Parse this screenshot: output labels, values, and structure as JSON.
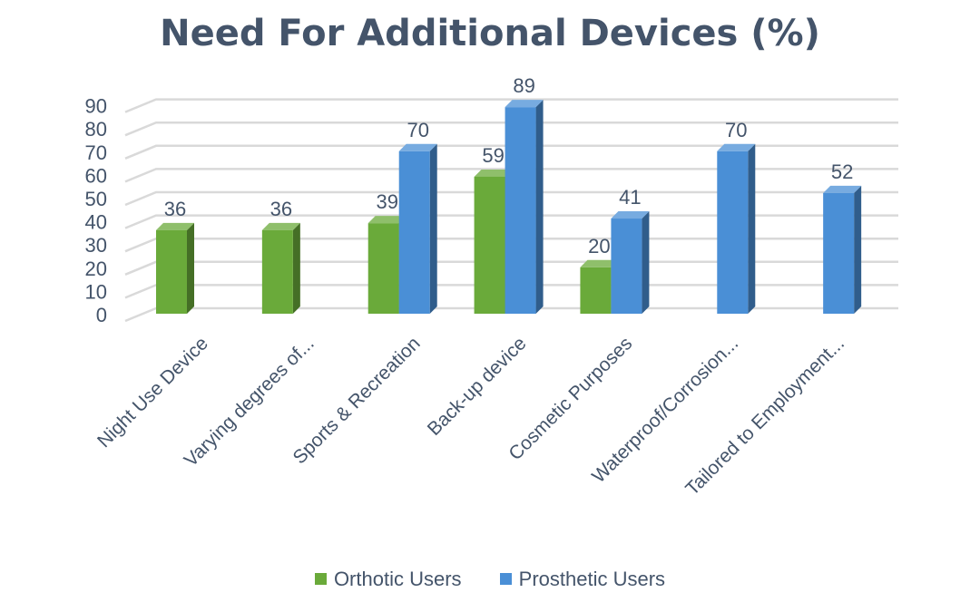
{
  "chart_data": {
    "type": "bar",
    "title": "Need For Additional Devices (%)",
    "xlabel": "",
    "ylabel": "",
    "ylim": [
      0,
      90
    ],
    "yticks": [
      0,
      10,
      20,
      30,
      40,
      50,
      60,
      70,
      80,
      90
    ],
    "grid": true,
    "legend_position": "bottom",
    "categories": [
      "Night Use Device",
      "Varying degrees of...",
      "Sports & Recreation",
      "Back-up device",
      "Cosmetic Purposes",
      "Waterproof/Corrosion...",
      "Tailored to Employment..."
    ],
    "series": [
      {
        "name": "Orthotic Users",
        "color": "#6aaa3a",
        "values": [
          36,
          36,
          39,
          59,
          20,
          null,
          null
        ]
      },
      {
        "name": "Prosthetic Users",
        "color": "#4a8fd6",
        "values": [
          null,
          null,
          70,
          89,
          41,
          70,
          52
        ]
      }
    ]
  },
  "colors": {
    "title": "#44546a",
    "text": "#44546a",
    "gridline": "#d9d9d9"
  }
}
